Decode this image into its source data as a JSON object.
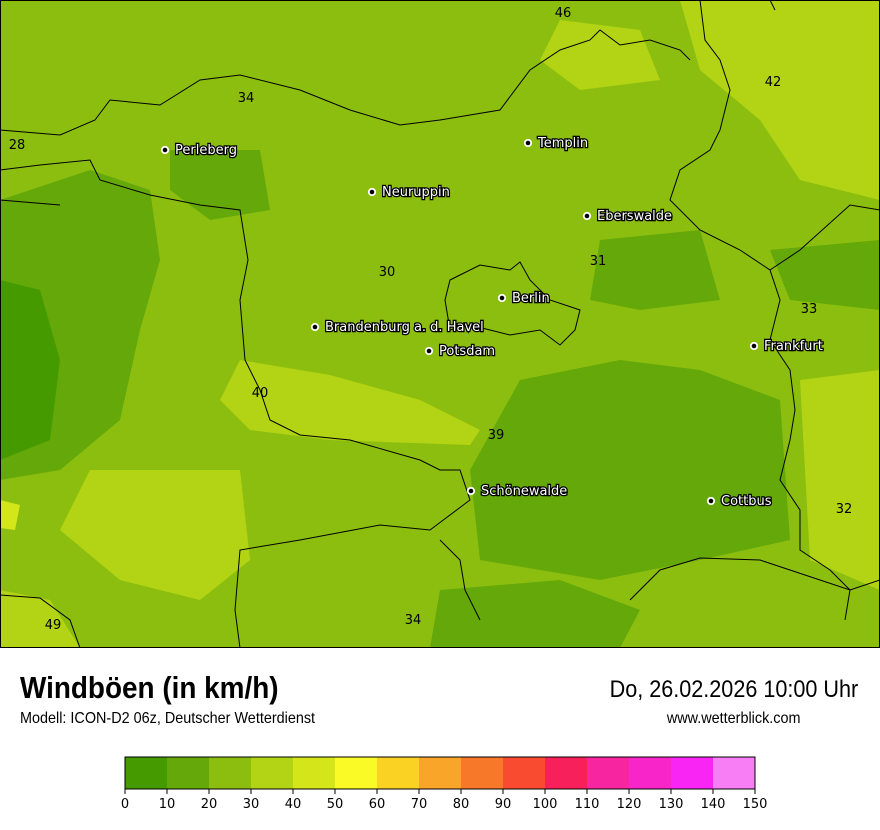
{
  "header": {
    "title": "Windböen (in km/h)",
    "subtitle": "Modell: ICON-D2 06z, Deutscher Wetterdienst",
    "datetime": "Do, 26.02.2026 10:00 Uhr",
    "website": "www.wetterblick.com"
  },
  "map": {
    "background_color": "#8cbe0f",
    "cities": [
      {
        "name": "Perleberg"
      },
      {
        "name": "Templin"
      },
      {
        "name": "Neuruppin"
      },
      {
        "name": "Eberswalde"
      },
      {
        "name": "Berlin"
      },
      {
        "name": "Brandenburg a. d. Havel"
      },
      {
        "name": "Potsdam"
      },
      {
        "name": "Frankfurt"
      },
      {
        "name": "Schönewalde"
      },
      {
        "name": "Cottbus"
      }
    ],
    "values": [
      "46",
      "42",
      "34",
      "28",
      "30",
      "31",
      "33",
      "40",
      "39",
      "32",
      "49",
      "34"
    ]
  },
  "legend": {
    "ticks": [
      "0",
      "10",
      "20",
      "30",
      "40",
      "50",
      "60",
      "70",
      "80",
      "90",
      "100",
      "110",
      "120",
      "130",
      "140",
      "150"
    ],
    "colors": [
      "#459a00",
      "#64a80a",
      "#8cbe0f",
      "#b2d414",
      "#d4e619",
      "#fafa26",
      "#fad223",
      "#f8a52a",
      "#f8782a",
      "#f84b2f",
      "#f8205a",
      "#f825a0",
      "#f825c8",
      "#f825f5",
      "#f87ef5"
    ]
  }
}
